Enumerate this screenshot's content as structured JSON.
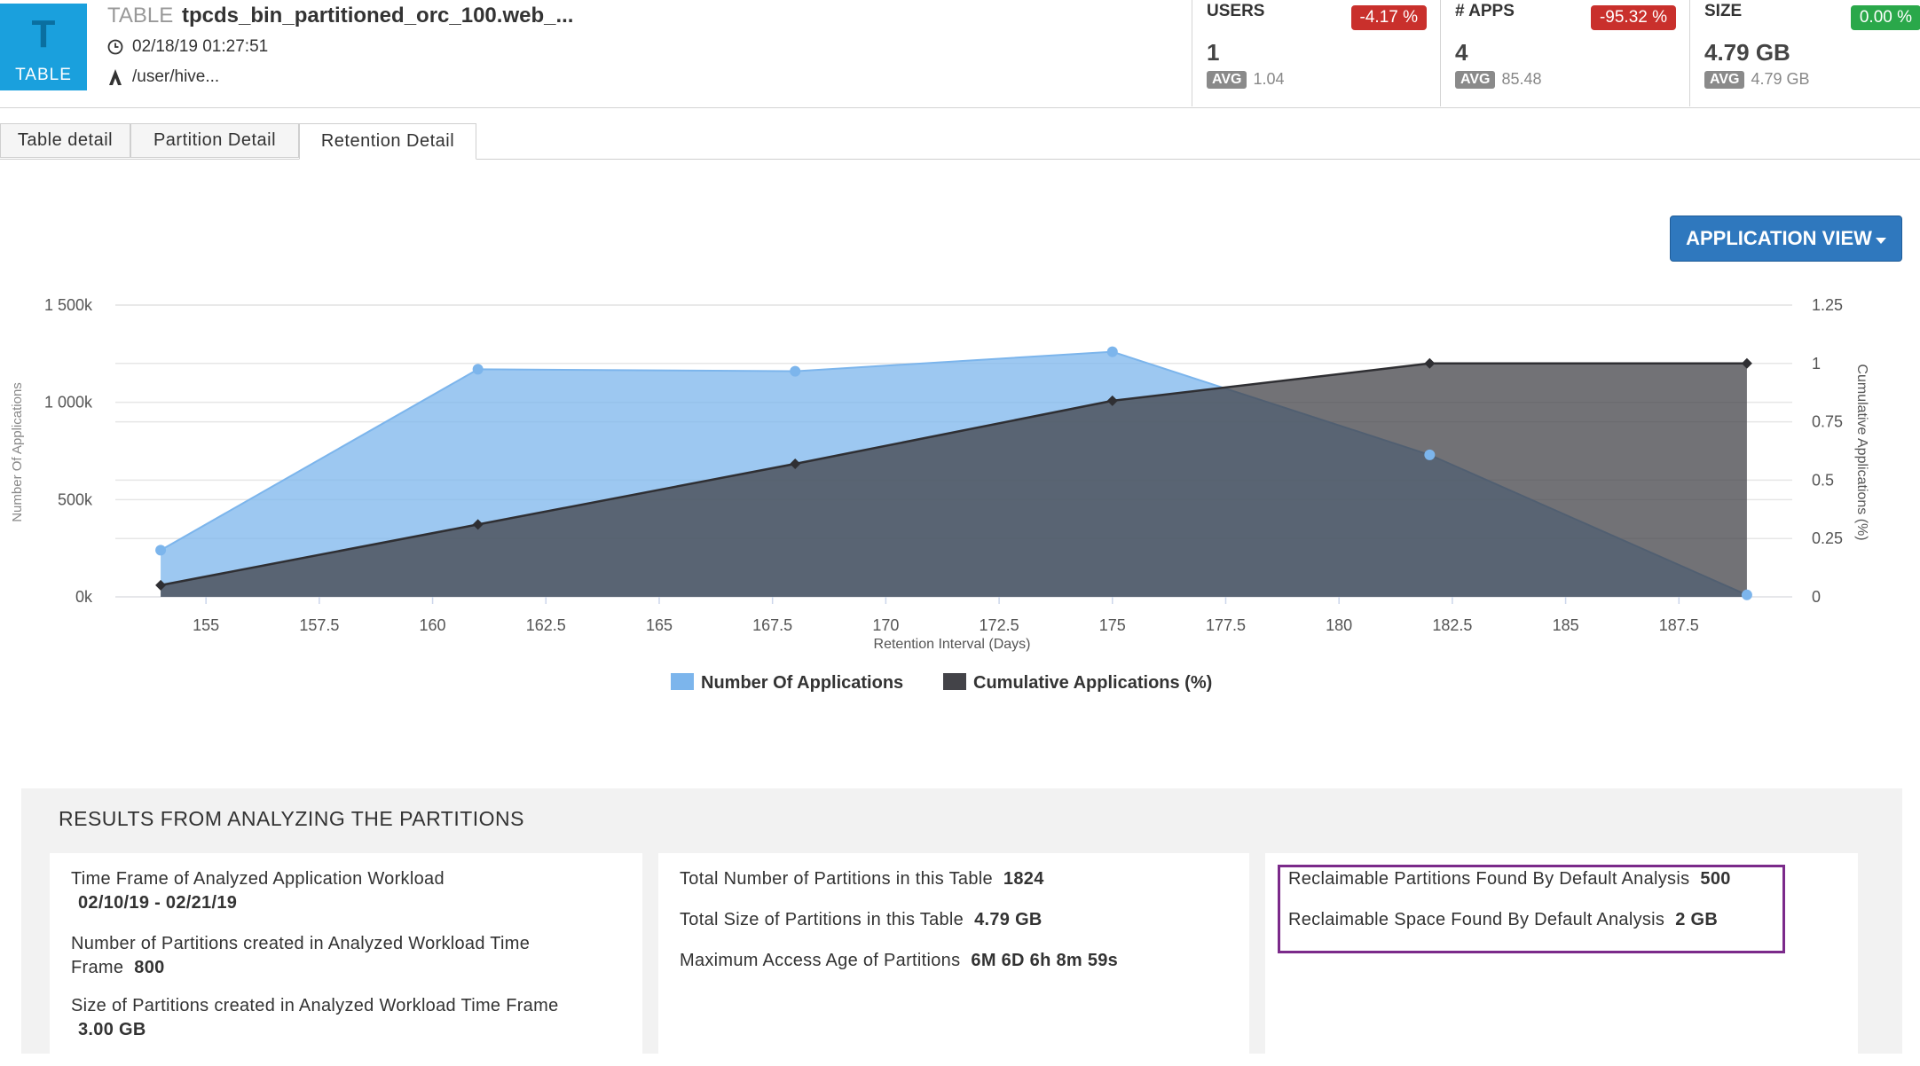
{
  "header": {
    "badge_letter": "T",
    "badge_label": "TABLE",
    "type_label": "TABLE",
    "table_name": "tpcds_bin_partitioned_orc_100.web_...",
    "timestamp": "02/18/19 01:27:51",
    "owner_path": "/user/hive...",
    "metrics": [
      {
        "label": "USERS",
        "value": "1",
        "avg_tag": "AVG",
        "avg": "1.04",
        "change": "-4.17 %",
        "change_color": "#c9302c"
      },
      {
        "label": "# APPS",
        "value": "4",
        "avg_tag": "AVG",
        "avg": "85.48",
        "change": "-95.32 %",
        "change_color": "#c9302c"
      },
      {
        "label": "SIZE",
        "value": "4.79 GB",
        "avg_tag": "AVG",
        "avg": "4.79 GB",
        "change": "0.00 %",
        "change_color": "#2aa84a"
      }
    ]
  },
  "tabs": [
    {
      "label": "Table detail",
      "active": false
    },
    {
      "label": "Partition Detail",
      "active": false
    },
    {
      "label": "Retention Detail",
      "active": true
    }
  ],
  "view_button": "APPLICATION VIEW",
  "chart_data": {
    "type": "area",
    "title": "",
    "xlabel": "Retention Interval (Days)",
    "ylabel_left": "Number Of Applications",
    "ylabel_right": "Cumulative Applications (%)",
    "xlim": [
      153,
      190
    ],
    "ylim_left": [
      0,
      1500000
    ],
    "ylim_right": [
      0,
      1.25
    ],
    "x_ticks": [
      "155",
      "157.5",
      "160",
      "162.5",
      "165",
      "167.5",
      "170",
      "172.5",
      "175",
      "177.5",
      "180",
      "182.5",
      "185",
      "187.5"
    ],
    "y_left_ticks": [
      "0k",
      "500k",
      "1 000k",
      "1 500k"
    ],
    "y_right_ticks": [
      "0",
      "0.25",
      "0.5",
      "0.75",
      "1",
      "1.25"
    ],
    "grid": true,
    "legend_placement": "bottom-center",
    "series": [
      {
        "name": "Number Of Applications",
        "axis": "left",
        "color": "#7cb5ec",
        "x": [
          154,
          161,
          168,
          175,
          182,
          189
        ],
        "values": [
          240000,
          1170000,
          1160000,
          1260000,
          730000,
          10000
        ]
      },
      {
        "name": "Cumulative Applications (%)",
        "axis": "right",
        "color": "#434348",
        "x": [
          154,
          161,
          168,
          175,
          182,
          189
        ],
        "values": [
          0.05,
          0.31,
          0.57,
          0.84,
          1.0,
          1.0
        ]
      }
    ]
  },
  "results": {
    "title": "RESULTS FROM ANALYZING THE PARTITIONS",
    "col1": {
      "time_frame_label": "Time Frame of Analyzed Application Workload",
      "time_frame_value": "02/10/19 - 02/21/19",
      "partitions_created_label_1": "Number of Partitions created in Analyzed Workload Time",
      "partitions_created_label_2": "Frame",
      "partitions_created_value": "800",
      "size_created_label": "Size of Partitions created in Analyzed Workload Time Frame",
      "size_created_value": "3.00 GB"
    },
    "col2": {
      "total_partitions_label": "Total Number of Partitions in this Table",
      "total_partitions_value": "1824",
      "total_size_label": "Total Size of Partitions in this Table",
      "total_size_value": "4.79 GB",
      "max_age_label": "Maximum Access Age of Partitions",
      "max_age_value": "6M 6D 6h 8m 59s"
    },
    "col3": {
      "reclaim_partitions_label": "Reclaimable Partitions Found By Default Analysis",
      "reclaim_partitions_value": "500",
      "reclaim_space_label": "Reclaimable Space Found By Default Analysis",
      "reclaim_space_value": "2 GB"
    }
  }
}
